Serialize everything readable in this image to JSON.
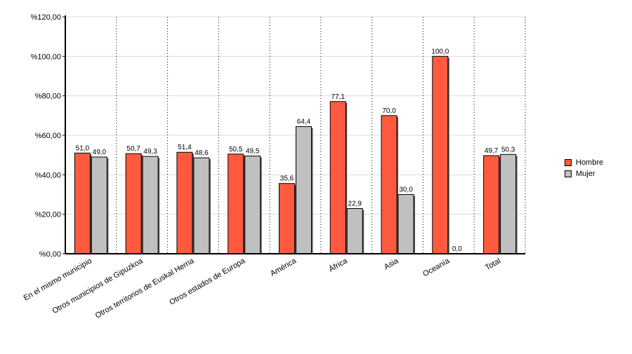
{
  "chart_data": {
    "type": "bar",
    "categories": [
      "En el mismo municipio",
      "Otros municipios de Gipuzkoa",
      "Otros territorios de Euskal Herria",
      "Otros estados de Europa",
      "América",
      "África",
      "Asia",
      "Oceanía",
      "Total"
    ],
    "series": [
      {
        "name": "Hombre",
        "color": "#ff5a40",
        "values": [
          51.0,
          50.7,
          51.4,
          50.5,
          35.6,
          77.1,
          70.0,
          100.0,
          49.7
        ],
        "labels": [
          "51,0",
          "50,7",
          "51,4",
          "50,5",
          "35,6",
          "77,1",
          "70,0",
          "100,0",
          "49,7"
        ]
      },
      {
        "name": "Mujer",
        "color": "#c0c0c0",
        "values": [
          49.0,
          49.3,
          48.6,
          49.5,
          64.4,
          22.9,
          30.0,
          0.0,
          50.3
        ],
        "labels": [
          "49,0",
          "49,3",
          "48,6",
          "49,5",
          "64,4",
          "22,9",
          "30,0",
          "0,0",
          "50,3"
        ]
      }
    ],
    "ylim": [
      0,
      120
    ],
    "yticks": [
      {
        "value": 0,
        "label": "%0,00"
      },
      {
        "value": 20,
        "label": "%20,00"
      },
      {
        "value": 40,
        "label": "%40,00"
      },
      {
        "value": 60,
        "label": "%60,00"
      },
      {
        "value": 80,
        "label": "%80,00"
      },
      {
        "value": 100,
        "label": "%100,00"
      },
      {
        "value": 120,
        "label": "%120,00"
      }
    ],
    "grid": true,
    "legend_position": "right",
    "title": "",
    "xlabel": "",
    "ylabel": ""
  }
}
